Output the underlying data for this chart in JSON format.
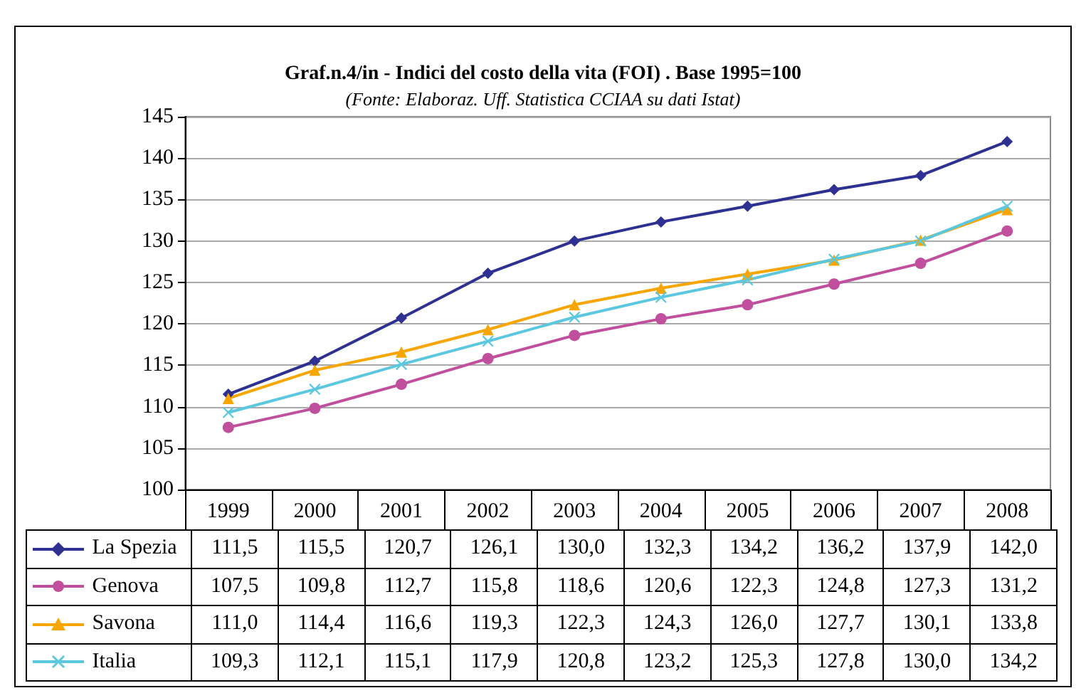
{
  "chart_data": {
    "type": "line",
    "title": "Graf.n.4/in - Indici del costo della vita (FOI) . Base 1995=100",
    "subtitle": "(Fonte: Elaboraz. Uff. Statistica CCIAA su dati Istat)",
    "categories": [
      "1999",
      "2000",
      "2001",
      "2002",
      "2003",
      "2004",
      "2005",
      "2006",
      "2007",
      "2008"
    ],
    "series": [
      {
        "name": "La Spezia",
        "color": "#2e3192",
        "marker": "diamond",
        "values": [
          111.5,
          115.5,
          120.7,
          126.1,
          130.0,
          132.3,
          134.2,
          136.2,
          137.9,
          142.0
        ],
        "value_labels": [
          "111,5",
          "115,5",
          "120,7",
          "126,1",
          "130,0",
          "132,3",
          "134,2",
          "136,2",
          "137,9",
          "142,0"
        ]
      },
      {
        "name": "Genova",
        "color": "#c0509e",
        "marker": "circle",
        "values": [
          107.5,
          109.8,
          112.7,
          115.8,
          118.6,
          120.6,
          122.3,
          124.8,
          127.3,
          131.2
        ],
        "value_labels": [
          "107,5",
          "109,8",
          "112,7",
          "115,8",
          "118,6",
          "120,6",
          "122,3",
          "124,8",
          "127,3",
          "131,2"
        ]
      },
      {
        "name": "Savona",
        "color": "#f7a600",
        "marker": "triangle",
        "values": [
          111.0,
          114.4,
          116.6,
          119.3,
          122.3,
          124.3,
          126.0,
          127.7,
          130.1,
          133.8
        ],
        "value_labels": [
          "111,0",
          "114,4",
          "116,6",
          "119,3",
          "122,3",
          "124,3",
          "126,0",
          "127,7",
          "130,1",
          "133,8"
        ]
      },
      {
        "name": "Italia",
        "color": "#5bc8e0",
        "marker": "cross",
        "values": [
          109.3,
          112.1,
          115.1,
          117.9,
          120.8,
          123.2,
          125.3,
          127.8,
          130.0,
          134.2
        ],
        "value_labels": [
          "109,3",
          "112,1",
          "115,1",
          "117,9",
          "120,8",
          "123,2",
          "125,3",
          "127,8",
          "130,0",
          "134,2"
        ]
      }
    ],
    "ylim": [
      100,
      145
    ],
    "yticks": [
      100,
      105,
      110,
      115,
      120,
      125,
      130,
      135,
      140,
      145
    ],
    "grid": "y",
    "legend": "bottom",
    "line_style": "solid"
  }
}
